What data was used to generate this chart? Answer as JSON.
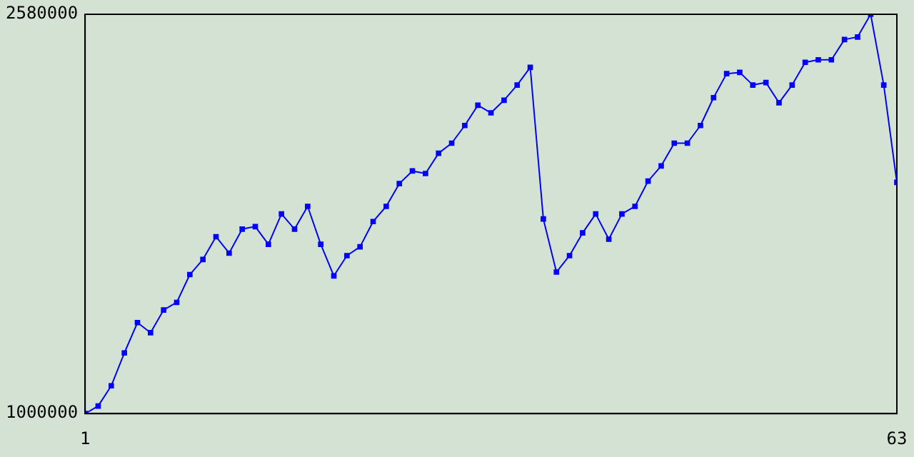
{
  "chart_data": {
    "type": "line",
    "x": [
      1,
      2,
      3,
      4,
      5,
      6,
      7,
      8,
      9,
      10,
      11,
      12,
      13,
      14,
      15,
      16,
      17,
      18,
      19,
      20,
      21,
      22,
      23,
      24,
      25,
      26,
      27,
      28,
      29,
      30,
      31,
      32,
      33,
      34,
      35,
      36,
      37,
      38,
      39,
      40,
      41,
      42,
      43,
      44,
      45,
      46,
      47,
      48,
      49,
      50,
      51,
      52,
      53,
      54,
      55,
      56,
      57,
      58,
      59,
      60,
      61,
      62,
      63
    ],
    "series": [
      {
        "color": "#0000ff",
        "values": [
          1000000,
          1030000,
          1110000,
          1240000,
          1360000,
          1320000,
          1410000,
          1440000,
          1550000,
          1610000,
          1700000,
          1635000,
          1730000,
          1740000,
          1670000,
          1790000,
          1730000,
          1820000,
          1670000,
          1545000,
          1625000,
          1660000,
          1760000,
          1820000,
          1910000,
          1960000,
          1950000,
          2030000,
          2070000,
          2140000,
          2220000,
          2190000,
          2240000,
          2300000,
          2370000,
          1770000,
          1560000,
          1625000,
          1715000,
          1790000,
          1690000,
          1790000,
          1820000,
          1920000,
          1980000,
          2070000,
          2070000,
          2140000,
          2250000,
          2345000,
          2350000,
          2300000,
          2310000,
          2230000,
          2300000,
          2390000,
          2400000,
          2400000,
          2480000,
          2490000,
          2580000,
          2300000,
          1915000
        ]
      }
    ],
    "xlim": [
      1,
      63
    ],
    "xticks": [
      1,
      63
    ],
    "ylim": [
      1000000,
      2580000
    ],
    "yticks": [
      1000000,
      2580000
    ],
    "grid": false,
    "legend": false,
    "marker": "square",
    "line_style": "solid"
  }
}
